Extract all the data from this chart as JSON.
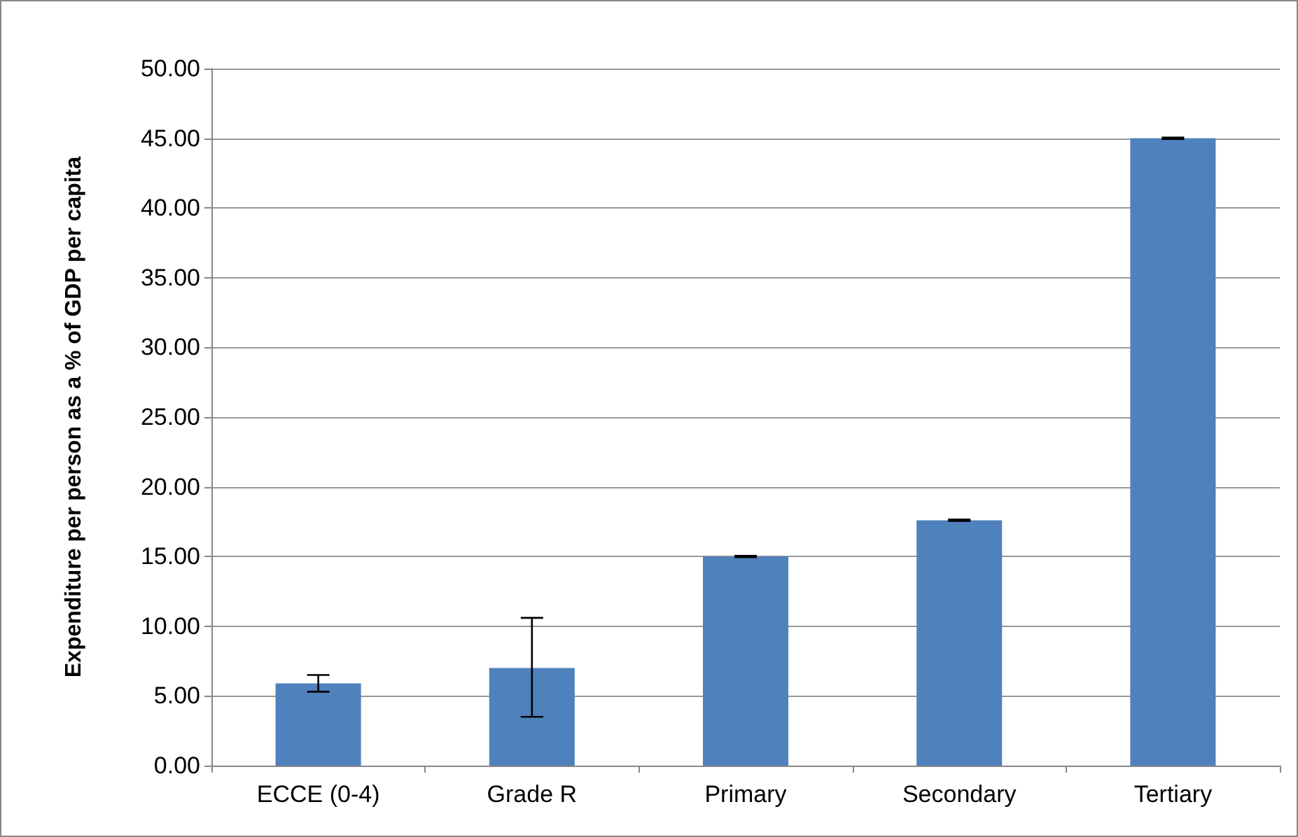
{
  "chart_data": {
    "type": "bar",
    "ylabel": "Expenditure per person as a % of GDP per capita",
    "categories": [
      "ECCE (0-4)",
      "Grade R",
      "Primary",
      "Secondary",
      "Tertiary"
    ],
    "values": [
      5.9,
      7.0,
      15.0,
      17.6,
      45.0
    ],
    "errors": [
      [
        5.3,
        6.5
      ],
      [
        3.5,
        10.6
      ],
      [
        14.95,
        15.05
      ],
      [
        17.55,
        17.65
      ],
      [
        44.95,
        45.05
      ]
    ],
    "color": "#4f81bd",
    "ylim": [
      0,
      50
    ],
    "yticks": [
      {
        "value": 0,
        "label": "0.00"
      },
      {
        "value": 5,
        "label": "5.00"
      },
      {
        "value": 10,
        "label": "10.00"
      },
      {
        "value": 15,
        "label": "15.00"
      },
      {
        "value": 20,
        "label": "20.00"
      },
      {
        "value": 25,
        "label": "25.00"
      },
      {
        "value": 30,
        "label": "30.00"
      },
      {
        "value": 35,
        "label": "35.00"
      },
      {
        "value": 40,
        "label": "40.00"
      },
      {
        "value": 45,
        "label": "45.00"
      },
      {
        "value": 50,
        "label": "50.00"
      }
    ],
    "grid": "y"
  }
}
